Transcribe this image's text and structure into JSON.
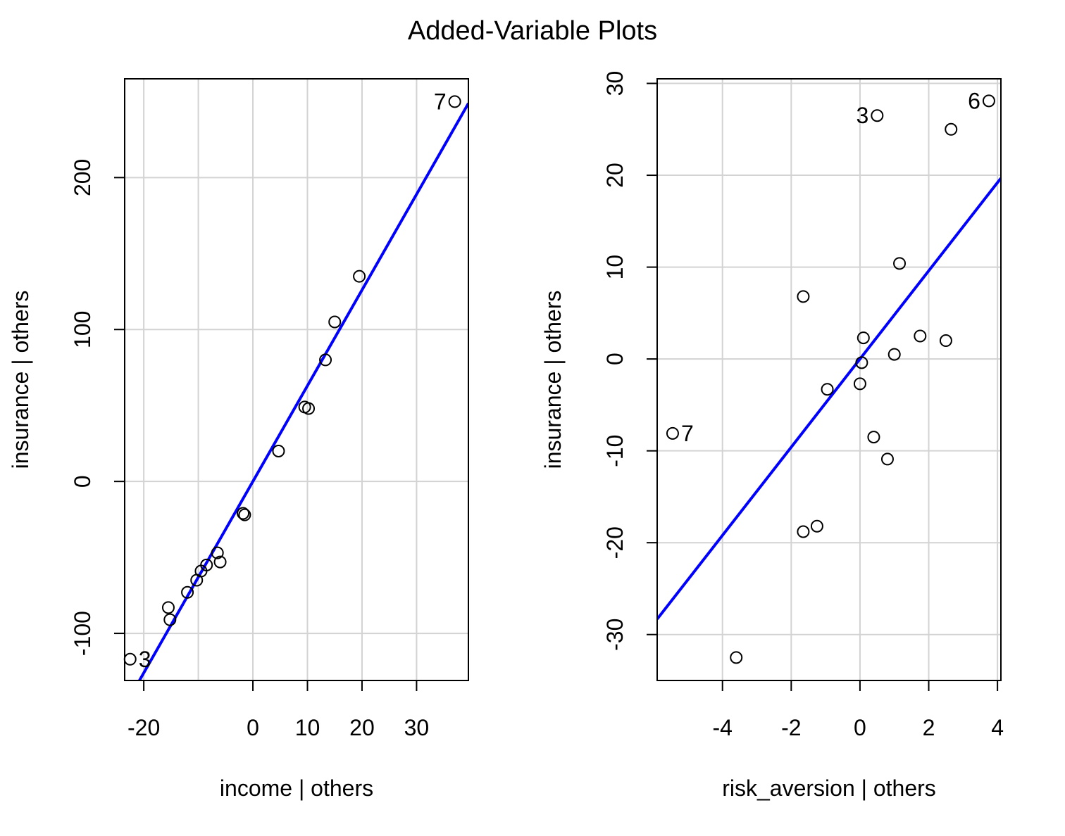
{
  "figure_title": "Added-Variable Plots",
  "chart_data": [
    {
      "type": "scatter",
      "title": "",
      "xlabel": "income | others",
      "ylabel": "insurance  | others",
      "xlim": [
        -23.5,
        39.5
      ],
      "ylim": [
        -131,
        265
      ],
      "xticks": [
        -20,
        0,
        10,
        20,
        30
      ],
      "xtick_labels": [
        "-20",
        "0",
        "10",
        "20",
        "30"
      ],
      "yticks": [
        -100,
        0,
        100,
        200
      ],
      "ytick_labels": [
        "-100",
        "0",
        "100",
        "200"
      ],
      "xgrid": [
        -20,
        -10,
        0,
        10,
        20,
        30
      ],
      "ygrid": [
        -100,
        0,
        100,
        200
      ],
      "grid": true,
      "fit_line": {
        "slope": 6.3,
        "intercept": 0,
        "color": "#0000ff"
      },
      "points": [
        {
          "x": 37,
          "y": 250
        },
        {
          "x": 19.5,
          "y": 135
        },
        {
          "x": 15,
          "y": 105
        },
        {
          "x": 13.3,
          "y": 80
        },
        {
          "x": 9.5,
          "y": 49
        },
        {
          "x": 10.2,
          "y": 48
        },
        {
          "x": 4.7,
          "y": 20
        },
        {
          "x": -1.8,
          "y": -21
        },
        {
          "x": -1.5,
          "y": -22
        },
        {
          "x": -6.5,
          "y": -47
        },
        {
          "x": -6,
          "y": -53
        },
        {
          "x": -8.5,
          "y": -55
        },
        {
          "x": -9.5,
          "y": -59
        },
        {
          "x": -10.3,
          "y": -65
        },
        {
          "x": -12,
          "y": -73
        },
        {
          "x": -15.5,
          "y": -83
        },
        {
          "x": -15.2,
          "y": -91
        },
        {
          "x": -22.5,
          "y": -117
        }
      ],
      "point_labels": [
        {
          "text": "7",
          "x": 37,
          "y": 250,
          "side": "left"
        },
        {
          "text": "3",
          "x": -22.5,
          "y": -117,
          "side": "right"
        }
      ]
    },
    {
      "type": "scatter",
      "title": "",
      "xlabel": "risk_aversion | others",
      "ylabel": "insurance  | others",
      "xlim": [
        -5.9,
        4.1
      ],
      "ylim": [
        -35,
        30.5
      ],
      "xticks": [
        -4,
        -2,
        0,
        2,
        4
      ],
      "xtick_labels": [
        "-4",
        "-2",
        "0",
        "2",
        "4"
      ],
      "yticks": [
        -30,
        -20,
        -10,
        0,
        10,
        20,
        30
      ],
      "ytick_labels": [
        "-30",
        "-20",
        "-10",
        "0",
        "10",
        "20",
        "30"
      ],
      "xgrid": [
        -4,
        -2,
        0,
        2,
        4
      ],
      "ygrid": [
        -30,
        -20,
        -10,
        0,
        10,
        20,
        30
      ],
      "grid": true,
      "fit_line": {
        "slope": 4.8,
        "intercept": 0,
        "color": "#0000ff"
      },
      "points": [
        {
          "x": 3.75,
          "y": 28.1
        },
        {
          "x": 0.5,
          "y": 26.5
        },
        {
          "x": 2.65,
          "y": 25
        },
        {
          "x": 1.15,
          "y": 10.4
        },
        {
          "x": -1.65,
          "y": 6.8
        },
        {
          "x": 1.75,
          "y": 2.5
        },
        {
          "x": 2.5,
          "y": 2
        },
        {
          "x": 0.1,
          "y": 2.3
        },
        {
          "x": 1,
          "y": 0.5
        },
        {
          "x": 0.05,
          "y": -0.4
        },
        {
          "x": 0,
          "y": -2.7
        },
        {
          "x": -0.95,
          "y": -3.3
        },
        {
          "x": 0.4,
          "y": -8.5
        },
        {
          "x": 0.8,
          "y": -10.9
        },
        {
          "x": -5.45,
          "y": -8.1
        },
        {
          "x": -1.25,
          "y": -18.2
        },
        {
          "x": -1.65,
          "y": -18.8
        },
        {
          "x": -3.6,
          "y": -32.5
        }
      ],
      "point_labels": [
        {
          "text": "6",
          "x": 3.75,
          "y": 28.1,
          "side": "left"
        },
        {
          "text": "3",
          "x": 0.5,
          "y": 26.5,
          "side": "left"
        },
        {
          "text": "7",
          "x": -5.45,
          "y": -8.1,
          "side": "right"
        }
      ]
    }
  ]
}
